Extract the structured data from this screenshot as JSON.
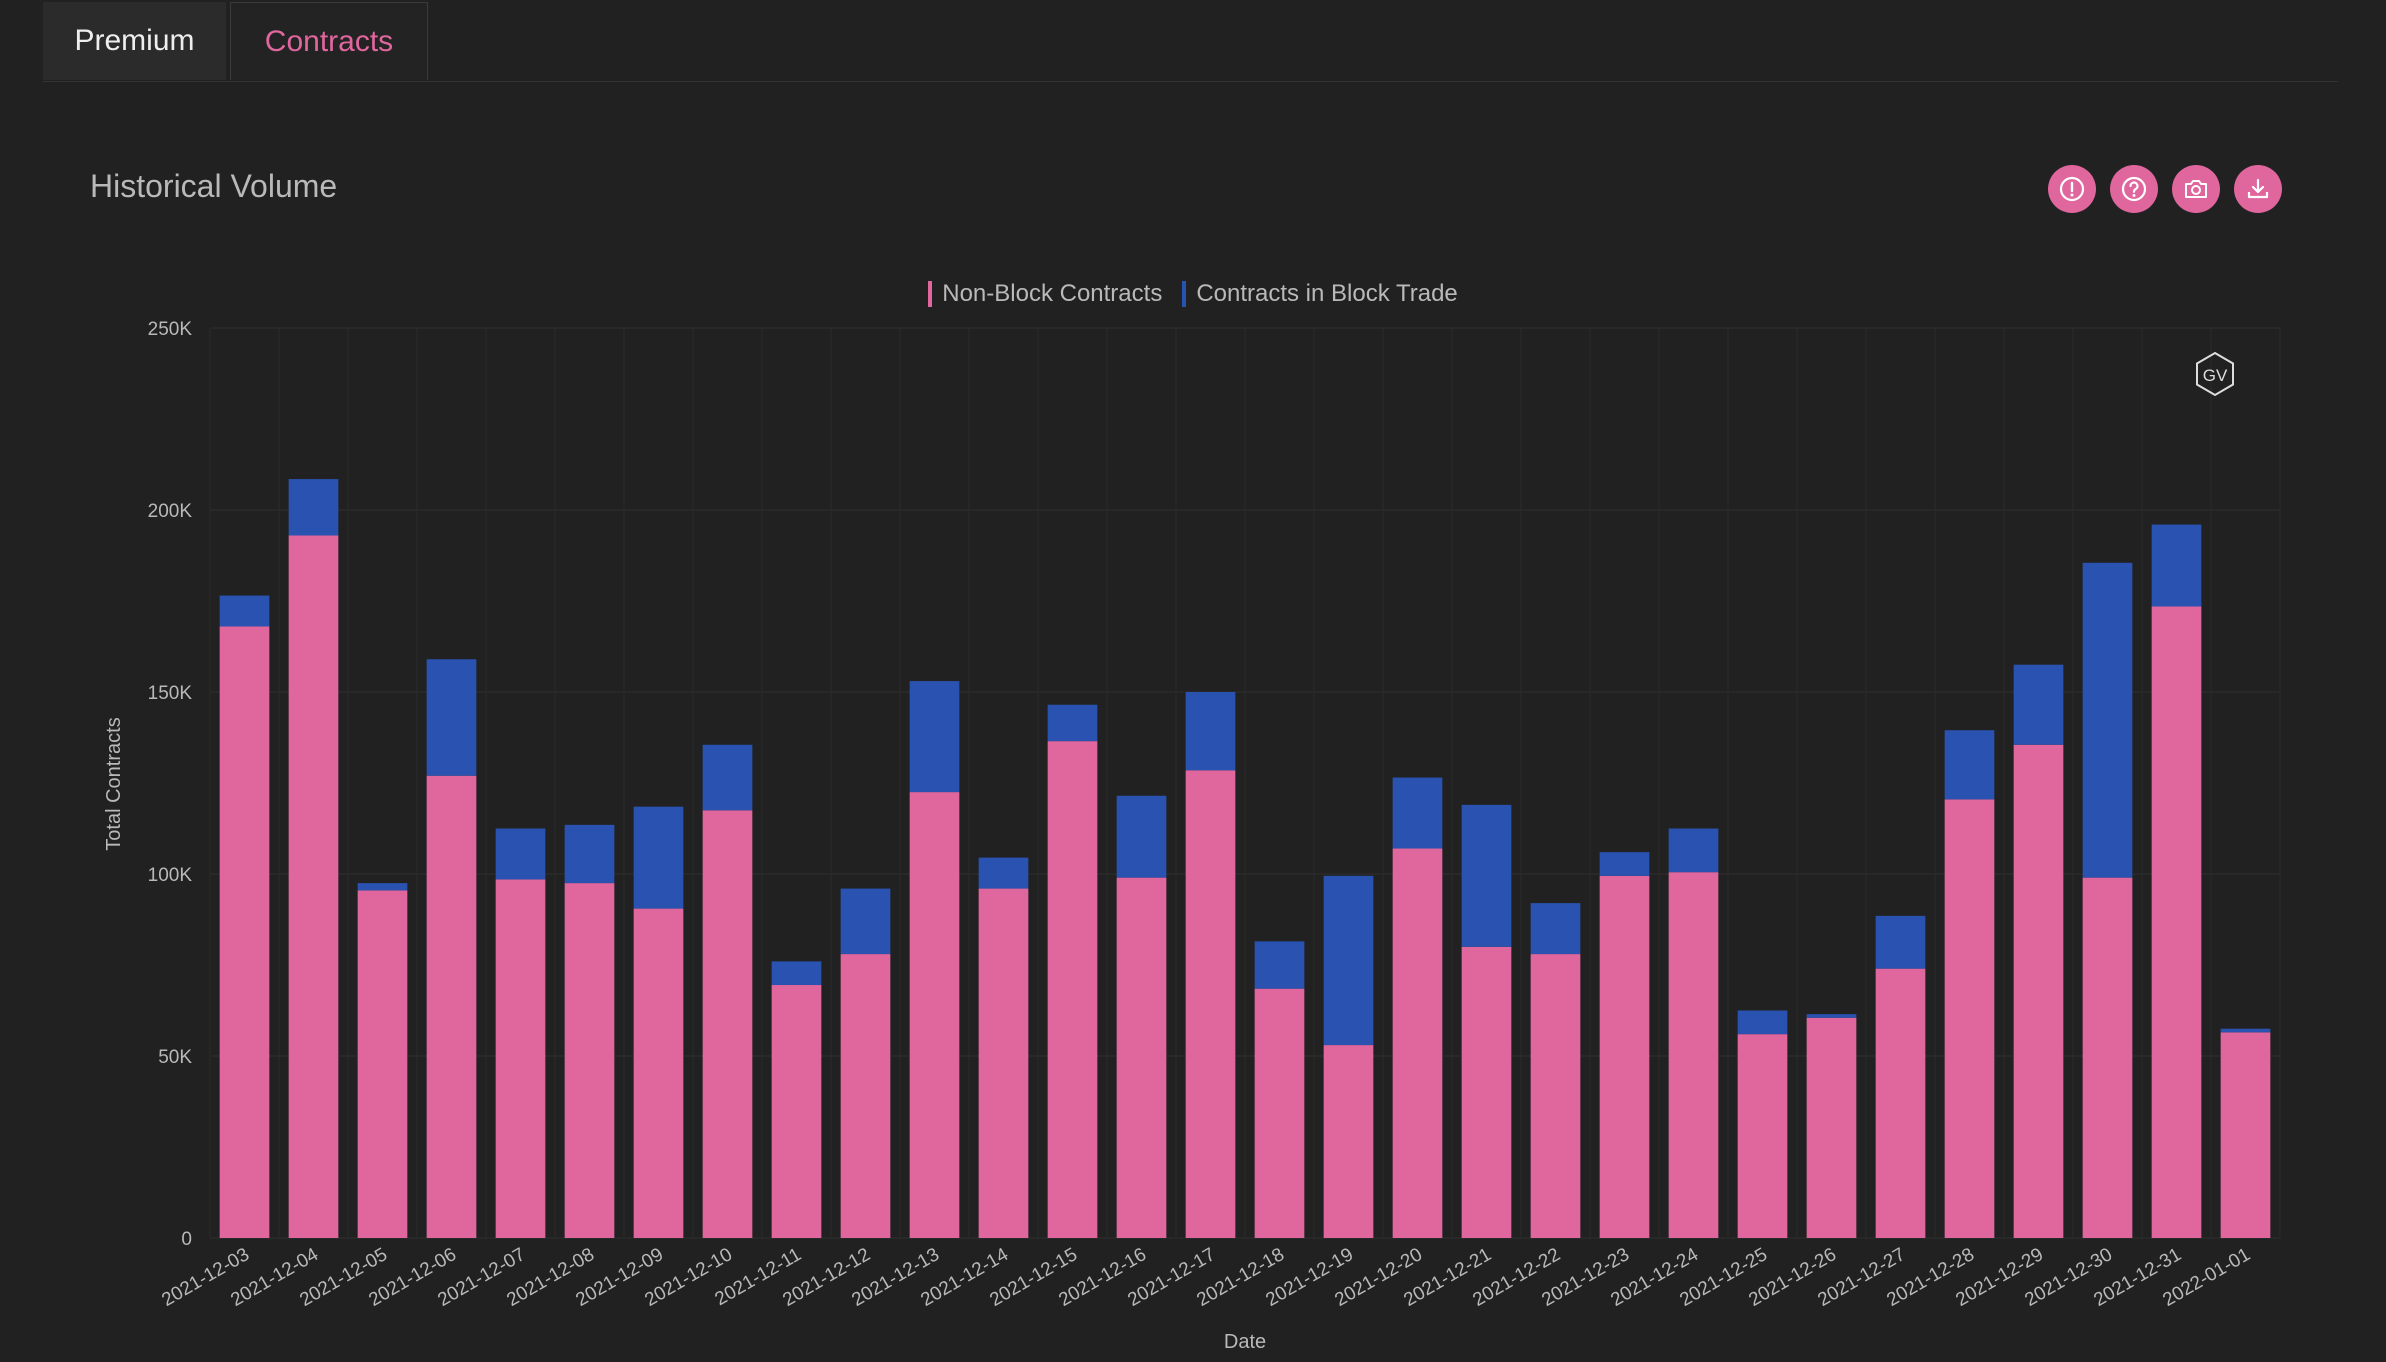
{
  "tabs": [
    {
      "label": "Premium",
      "active": false
    },
    {
      "label": "Contracts",
      "active": true
    }
  ],
  "title": "Historical Volume",
  "toolbar": {
    "icons": [
      "alert-icon",
      "help-icon",
      "camera-icon",
      "download-icon"
    ]
  },
  "watermark": "GV",
  "colors": {
    "accent": "#e0669e",
    "non_block": "#e0669e",
    "block": "#2a52b0",
    "background": "#212121"
  },
  "chart_data": {
    "type": "bar",
    "stacked": true,
    "title": "",
    "xlabel": "Date",
    "ylabel": "Total Contracts",
    "ylim": [
      0,
      250000
    ],
    "yticks": [
      0,
      50000,
      100000,
      150000,
      200000,
      250000
    ],
    "ytick_labels": [
      "0",
      "50K",
      "100K",
      "150K",
      "200K",
      "250K"
    ],
    "grid": true,
    "legend_position": "top-center",
    "categories": [
      "2021-12-03",
      "2021-12-04",
      "2021-12-05",
      "2021-12-06",
      "2021-12-07",
      "2021-12-08",
      "2021-12-09",
      "2021-12-10",
      "2021-12-11",
      "2021-12-12",
      "2021-12-13",
      "2021-12-14",
      "2021-12-15",
      "2021-12-16",
      "2021-12-17",
      "2021-12-18",
      "2021-12-19",
      "2021-12-20",
      "2021-12-21",
      "2021-12-22",
      "2021-12-23",
      "2021-12-24",
      "2021-12-25",
      "2021-12-26",
      "2021-12-27",
      "2021-12-28",
      "2021-12-29",
      "2021-12-30",
      "2021-12-31",
      "2022-01-01"
    ],
    "series": [
      {
        "name": "Non-Block Contracts",
        "color": "#e0669e",
        "values": [
          168000,
          193000,
          95500,
          127000,
          98500,
          97500,
          90500,
          117500,
          69500,
          78000,
          122500,
          96000,
          136500,
          99000,
          128500,
          68500,
          53000,
          107000,
          80000,
          78000,
          99500,
          100500,
          56000,
          60500,
          74000,
          120500,
          135500,
          99000,
          173500,
          56500
        ]
      },
      {
        "name": "Contracts in Block Trade",
        "color": "#2a52b0",
        "values": [
          8500,
          15500,
          2000,
          32000,
          14000,
          16000,
          28000,
          18000,
          6500,
          18000,
          30500,
          8500,
          10000,
          22500,
          21500,
          13000,
          46500,
          19500,
          39000,
          14000,
          6500,
          12000,
          6500,
          1000,
          14500,
          19000,
          22000,
          86500,
          22500,
          1000
        ]
      }
    ]
  }
}
